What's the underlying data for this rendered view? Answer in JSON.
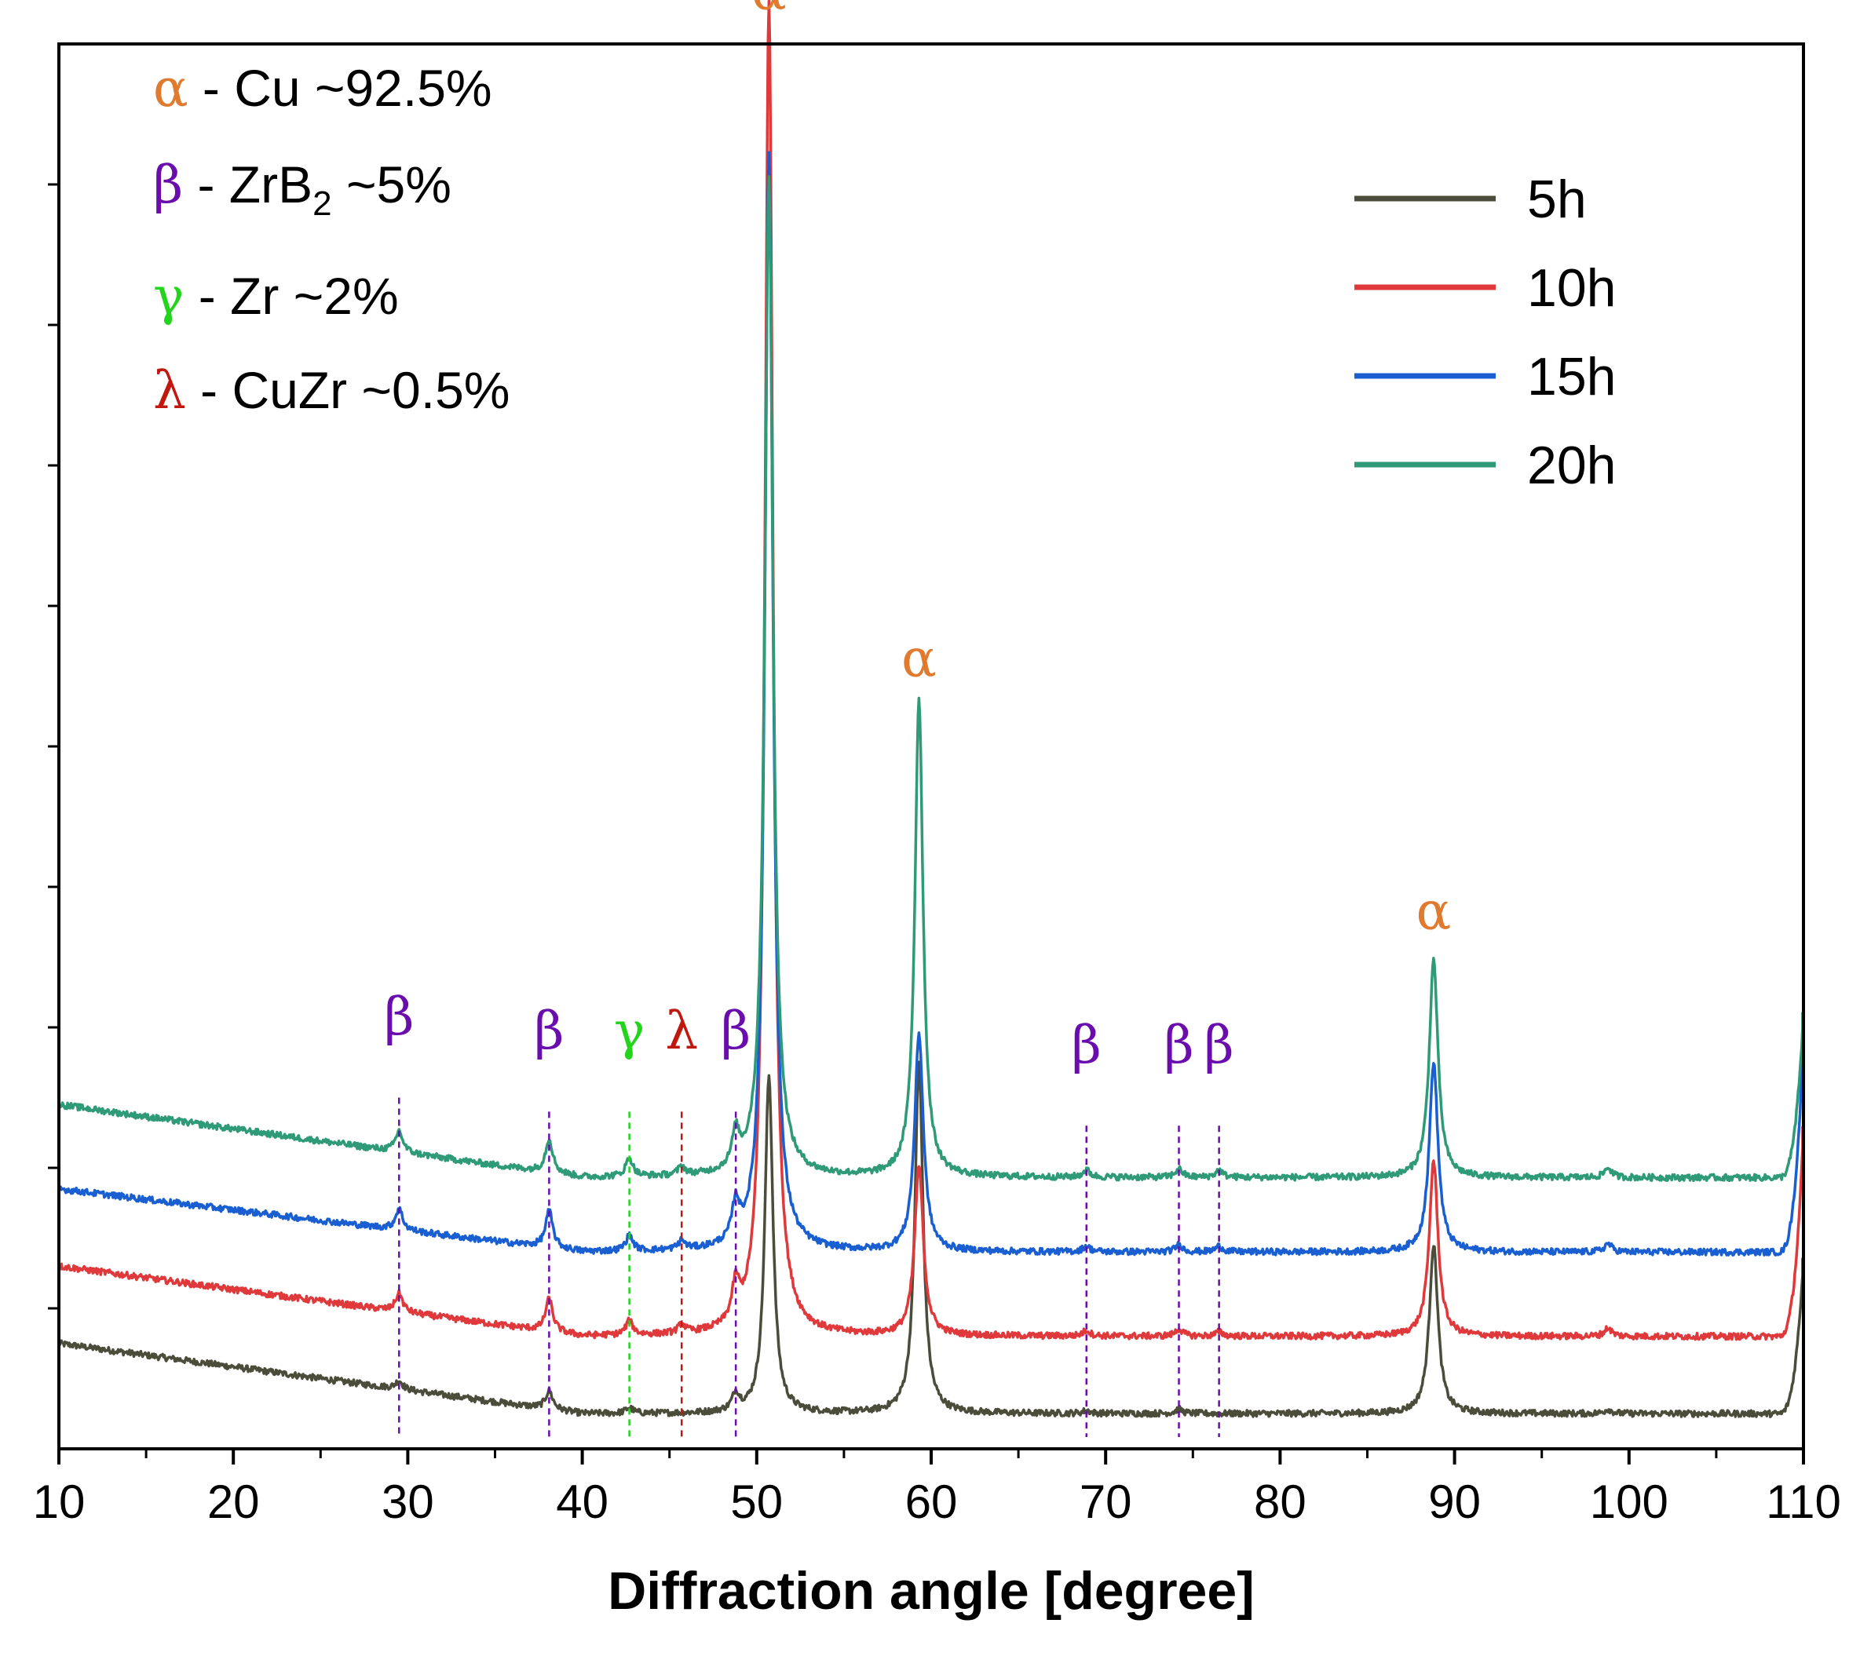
{
  "chart_data": {
    "type": "line",
    "xlabel": "Diffraction angle  [degree]",
    "ylabel": "",
    "xlim": [
      10,
      110
    ],
    "x_ticks": [
      10,
      20,
      30,
      40,
      50,
      60,
      70,
      80,
      90,
      100,
      110
    ],
    "x_tick_labels": [
      "10",
      "20",
      "30",
      "40",
      "50",
      "60",
      "70",
      "80",
      "90",
      "100",
      "110"
    ],
    "ylim": [
      0,
      100
    ],
    "y_tick_values": [
      10,
      20,
      30,
      40,
      50,
      60,
      70,
      80,
      90
    ],
    "y_tick_labels_shown": false,
    "legend_position": "top-right",
    "phase_legend": [
      {
        "symbol": "α",
        "text": " - Cu ~92.5%",
        "color": "#E07A2E"
      },
      {
        "symbol": "β",
        "text": " - ZrB",
        "sub": "2",
        "text2": " ~5%",
        "color": "#6A0DAD"
      },
      {
        "symbol": "γ",
        "text": " - Zr ~2%",
        "color": "#22D41C"
      },
      {
        "symbol": "λ",
        "text": " - CuZr ~0.5%",
        "color": "#C0180E"
      }
    ],
    "series": [
      {
        "name": "5h",
        "color": "#4C4C3A",
        "baseline": 2.5,
        "offset_slope_start": 7.5,
        "peaks": [
          [
            29.5,
            0.6
          ],
          [
            38.1,
            1.3
          ],
          [
            42.7,
            0.4
          ],
          [
            48.8,
            1.2
          ],
          [
            50.7,
            24.0
          ],
          [
            59.3,
            25.0
          ],
          [
            68.9,
            0.2
          ],
          [
            74.2,
            0.3
          ],
          [
            88.8,
            12.0
          ],
          [
            98.8,
            0.3
          ]
        ]
      },
      {
        "name": "10h",
        "color": "#E0393B",
        "baseline": 8.0,
        "offset_slope_start": 13.0,
        "peaks": [
          [
            29.5,
            1.3
          ],
          [
            38.1,
            2.3
          ],
          [
            42.7,
            1.0
          ],
          [
            45.7,
            0.6
          ],
          [
            48.8,
            2.6
          ],
          [
            50.7,
            95.0
          ],
          [
            59.3,
            12.0
          ],
          [
            68.9,
            0.4
          ],
          [
            74.2,
            0.5
          ],
          [
            76.5,
            0.3
          ],
          [
            88.8,
            12.5
          ],
          [
            98.8,
            0.6
          ]
        ]
      },
      {
        "name": "15h",
        "color": "#1A5FD1",
        "baseline": 14.0,
        "offset_slope_start": 18.5,
        "peaks": [
          [
            29.5,
            1.5
          ],
          [
            38.1,
            2.6
          ],
          [
            42.7,
            1.1
          ],
          [
            45.7,
            0.6
          ],
          [
            48.8,
            2.6
          ],
          [
            50.7,
            78.0
          ],
          [
            59.3,
            15.5
          ],
          [
            68.9,
            0.4
          ],
          [
            74.2,
            0.5
          ],
          [
            76.5,
            0.4
          ],
          [
            88.8,
            13.5
          ],
          [
            98.8,
            0.6
          ]
        ]
      },
      {
        "name": "20h",
        "color": "#2E9A78",
        "baseline": 19.3,
        "offset_slope_start": 24.5,
        "peaks": [
          [
            29.5,
            1.5
          ],
          [
            38.1,
            2.4
          ],
          [
            42.7,
            1.3
          ],
          [
            45.7,
            0.6
          ],
          [
            48.8,
            2.4
          ],
          [
            50.7,
            71.0
          ],
          [
            59.3,
            34.0
          ],
          [
            68.9,
            0.5
          ],
          [
            74.2,
            0.6
          ],
          [
            76.5,
            0.5
          ],
          [
            88.8,
            15.5
          ],
          [
            98.8,
            0.7
          ]
        ]
      }
    ],
    "end_rise": [
      [
        109.9,
        9.0
      ],
      [
        109.9,
        12.0
      ],
      [
        109.9,
        12.5
      ],
      [
        109.9,
        9.5
      ]
    ],
    "peak_annotations": [
      {
        "x": 50.7,
        "label": "α",
        "color": "#E07A2E",
        "y": 102.5,
        "line": false
      },
      {
        "x": 59.3,
        "label": "α",
        "color": "#E07A2E",
        "y": 55.0,
        "line": false
      },
      {
        "x": 88.8,
        "label": "α",
        "color": "#E07A2E",
        "y": 37.0,
        "line": false
      },
      {
        "x": 29.5,
        "label": "β",
        "color": "#6A0DAD",
        "y": 29.5,
        "line": true,
        "line_top": 25.0
      },
      {
        "x": 38.1,
        "label": "β",
        "color": "#6A0DAD",
        "y": 28.5,
        "line": true,
        "line_top": 24.0
      },
      {
        "x": 42.7,
        "label": "γ",
        "color": "#22D41C",
        "y": 28.5,
        "line": true,
        "line_top": 24.0
      },
      {
        "x": 45.7,
        "label": "λ",
        "color": "#C0180E",
        "y": 28.5,
        "line": true,
        "line_top": 24.0
      },
      {
        "x": 48.8,
        "label": "β",
        "color": "#6A0DAD",
        "y": 28.5,
        "line": true,
        "line_top": 24.0
      },
      {
        "x": 68.9,
        "label": "β",
        "color": "#6A0DAD",
        "y": 27.5,
        "line": true,
        "line_top": 23.0
      },
      {
        "x": 74.2,
        "label": "β",
        "color": "#6A0DAD",
        "y": 27.5,
        "line": true,
        "line_top": 23.0
      },
      {
        "x": 76.5,
        "label": "β",
        "color": "#6A0DAD",
        "y": 27.5,
        "line": true,
        "line_top": 23.0
      }
    ]
  }
}
